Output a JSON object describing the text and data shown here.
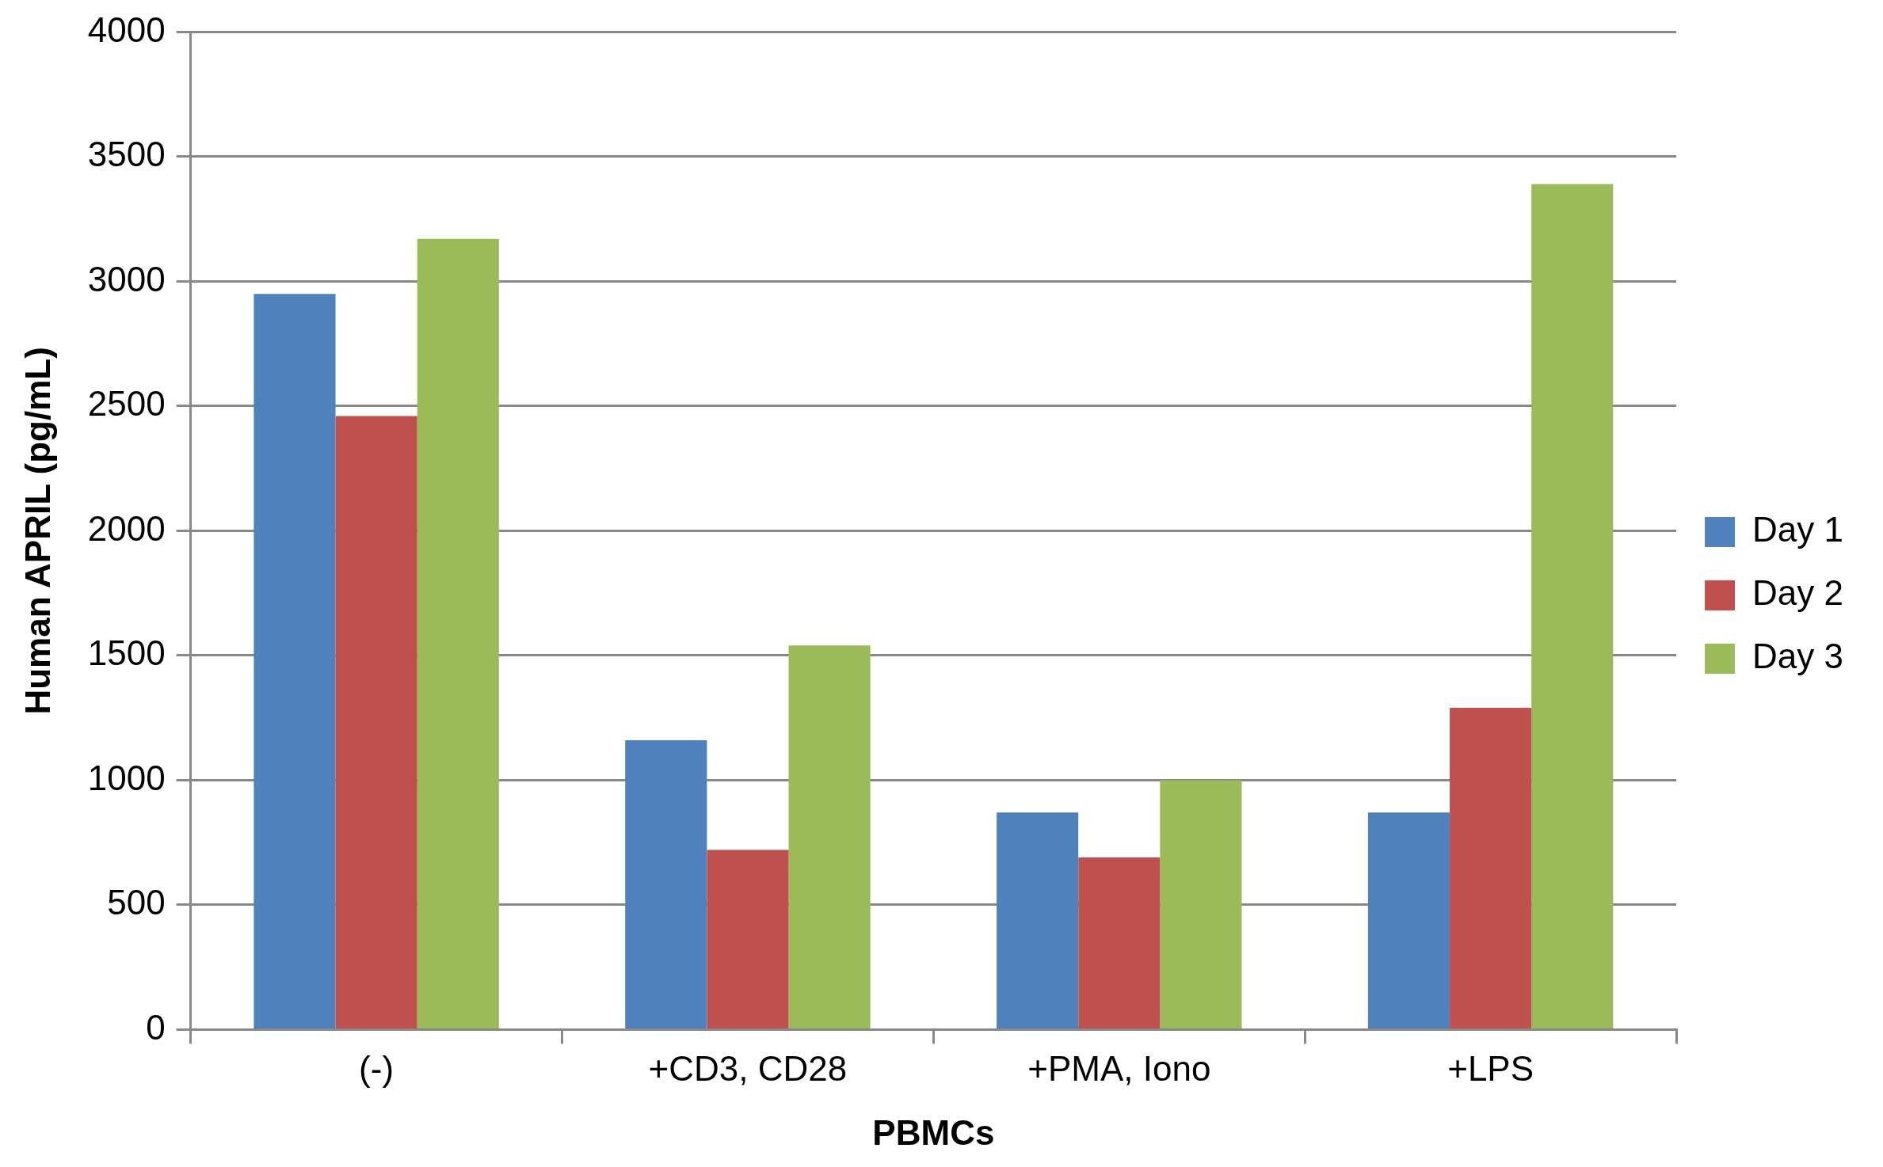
{
  "chart_data": {
    "type": "bar",
    "xlabel": "PBMCs",
    "ylabel": "Human APRIL (pg/mL)",
    "categories": [
      "(-)",
      "+CD3, CD28",
      "+PMA, Iono",
      "+LPS"
    ],
    "series": [
      {
        "name": "Day 1",
        "color": "#4f81bd",
        "values": [
          2950,
          1160,
          870,
          870
        ]
      },
      {
        "name": "Day 2",
        "color": "#c0504d",
        "values": [
          2460,
          720,
          690,
          1290
        ]
      },
      {
        "name": "Day 3",
        "color": "#9bbb59",
        "values": [
          3170,
          1540,
          1000,
          3390
        ]
      }
    ],
    "ylim": [
      0,
      4000
    ],
    "yticks": [
      0,
      500,
      1000,
      1500,
      2000,
      2500,
      3000,
      3500,
      4000
    ],
    "grid": "y",
    "legend": "right"
  }
}
